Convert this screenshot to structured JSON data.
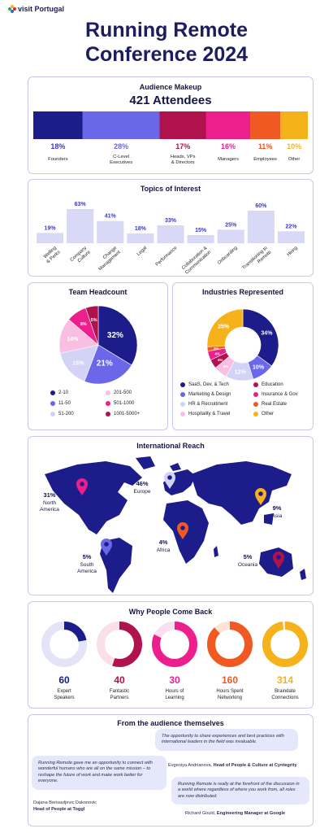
{
  "brand": {
    "name": "visit Portugal"
  },
  "title_line1": "Running Remote",
  "title_line2": "Conference 2024",
  "audience": {
    "heading": "Audience Makeup",
    "total": "421 Attendees"
  },
  "topics": {
    "heading": "Topics of Interest"
  },
  "team": {
    "heading": "Team Headcount"
  },
  "industries": {
    "heading": "Industries Represented"
  },
  "reach": {
    "heading": "International Reach"
  },
  "comeback": {
    "heading": "Why People Come Back"
  },
  "quotes": {
    "heading": "From the audience themselves",
    "q1": "The opportunity to share experiences and best practices with international leaders in the field was invaluable.",
    "q1_author": "Evgeniya Andrianova, ",
    "q1_role": "Head of People & Culture at Cyntegrity",
    "q2": "Running Remote gave me an opportunity to connect with wonderful humans who are all on the same mission – to reshape the future of work and make work better for everyone.",
    "q2_author": "Dajana Berisavljevic Dakonovic",
    "q2_role": "Head of People at Toggl",
    "q3": "Running Remote is really at the forefront of the discussion in a world where regardless of where you work from, all roles are now distributed.",
    "q3_author": "Richard Gould, ",
    "q3_role": "Engineering Manager at Google"
  },
  "chart_data": [
    {
      "type": "bar",
      "title": "Audience Makeup",
      "subtitle": "421 Attendees",
      "orientation": "stacked-horizontal",
      "categories": [
        "Founders",
        "C-Level Executives",
        "Heads, VPs & Directors",
        "Managers",
        "Employees",
        "Other"
      ],
      "category_lines": [
        [
          "Founders"
        ],
        [
          "C-Level",
          "Executives"
        ],
        [
          "Heads, VPs",
          "& Directors"
        ],
        [
          "Managers"
        ],
        [
          "Employees"
        ],
        [
          "Other"
        ]
      ],
      "values": [
        18,
        28,
        17,
        16,
        11,
        10
      ],
      "labels": [
        "18%",
        "28%",
        "17%",
        "16%",
        "11%",
        "10%"
      ],
      "colors": [
        "#1c1d8a",
        "#6a67e8",
        "#b0124e",
        "#ec1f8c",
        "#f05a22",
        "#f6b21b"
      ]
    },
    {
      "type": "bar",
      "title": "Topics of Interest",
      "categories": [
        "Welling & Perks",
        "Company Culture",
        "Change Management",
        "Legal",
        "Performance",
        "Collaboration & Communication",
        "Onboarding",
        "Transitioning to Remote",
        "Hiring"
      ],
      "category_lines": [
        [
          "Welling",
          "& Perks"
        ],
        [
          "Company",
          "Culture"
        ],
        [
          "Change",
          "Management"
        ],
        [
          "Legal"
        ],
        [
          "Performance"
        ],
        [
          "Collaboration &",
          "Communication"
        ],
        [
          "Onboarding"
        ],
        [
          "Transitioning to",
          "Remote"
        ],
        [
          "Hiring"
        ]
      ],
      "values": [
        19,
        63,
        41,
        18,
        33,
        15,
        25,
        60,
        22
      ],
      "labels": [
        "19%",
        "63%",
        "41%",
        "18%",
        "33%",
        "15%",
        "25%",
        "60%",
        "22%"
      ],
      "colors": {
        "bar": "#d8d9f6",
        "label": "#3a37c8"
      }
    },
    {
      "type": "pie",
      "title": "Team Headcount",
      "categories": [
        "2-10",
        "11-50",
        "51-200",
        "201-500",
        "501-1000",
        "1001-5000+"
      ],
      "values": [
        32,
        21,
        15,
        14,
        8,
        5
      ],
      "labels": [
        "32%",
        "21%",
        "15%",
        "14%",
        "8%",
        "5%"
      ],
      "colors": [
        "#1c1d8a",
        "#6a67e8",
        "#d3d2f7",
        "#f8bfe2",
        "#ec1f8c",
        "#b0124e"
      ]
    },
    {
      "type": "pie",
      "variant": "donut",
      "title": "Industries Represented",
      "categories": [
        "SaaS, Dev, & Tech",
        "Marketing & Design",
        "HR & Recruitment",
        "Hospitality & Travel",
        "Education",
        "Insurance & Gov",
        "Real Estate",
        "Other"
      ],
      "values": [
        34,
        10,
        12,
        6,
        4,
        4,
        2,
        25
      ],
      "labels": [
        "34%",
        "10%",
        "12%",
        "6%",
        "4%",
        "4%",
        "2%",
        "25%"
      ],
      "colors": [
        "#1c1d8a",
        "#6a67e8",
        "#d3d2f7",
        "#f8bfe2",
        "#b0124e",
        "#ec1f8c",
        "#f05a22",
        "#f6b21b"
      ]
    },
    {
      "type": "map",
      "title": "International Reach",
      "regions": [
        "North America",
        "Europe",
        "Asia",
        "Africa",
        "South America",
        "Oceania"
      ],
      "values": [
        31,
        46,
        9,
        4,
        5,
        5
      ],
      "labels": [
        "31%",
        "46%",
        "9%",
        "4%",
        "5%",
        "5%"
      ],
      "region_lines": [
        [
          "North",
          "America"
        ],
        [
          "Europe"
        ],
        [
          "Asia"
        ],
        [
          "Africa"
        ],
        [
          "South",
          "America"
        ],
        [
          "Oceania"
        ]
      ],
      "pin_colors": [
        "#ec1f8c",
        "#d3d2f7",
        "#f6b21b",
        "#f05a22",
        "#6a67e8",
        "#b0124e"
      ]
    },
    {
      "type": "pie",
      "variant": "progress-rings",
      "title": "Why People Come Back",
      "categories": [
        "Expert Speakers",
        "Fantastic Partners",
        "Hours of Learning",
        "Hours Spent Networking",
        "Braindate Connections"
      ],
      "category_lines": [
        [
          "Expert",
          "Speakers"
        ],
        [
          "Fantastic",
          "Partners"
        ],
        [
          "Hours of",
          "Learning"
        ],
        [
          "Hours Spent",
          "Networking"
        ],
        [
          "Braindate",
          "Connections"
        ]
      ],
      "values": [
        60,
        40,
        30,
        160,
        314
      ],
      "labels": [
        "60",
        "40",
        "30",
        "160",
        "314"
      ],
      "ring_fill": [
        0.22,
        0.55,
        0.82,
        0.88,
        0.98
      ],
      "colors": [
        "#1c1d8a",
        "#b0124e",
        "#ec1f8c",
        "#f05a22",
        "#f6b21b"
      ],
      "track_colors": [
        "#e3e4f8",
        "#f8dfe8",
        "#fbdff0",
        "#fde3d6",
        "#fdeec6"
      ]
    }
  ]
}
